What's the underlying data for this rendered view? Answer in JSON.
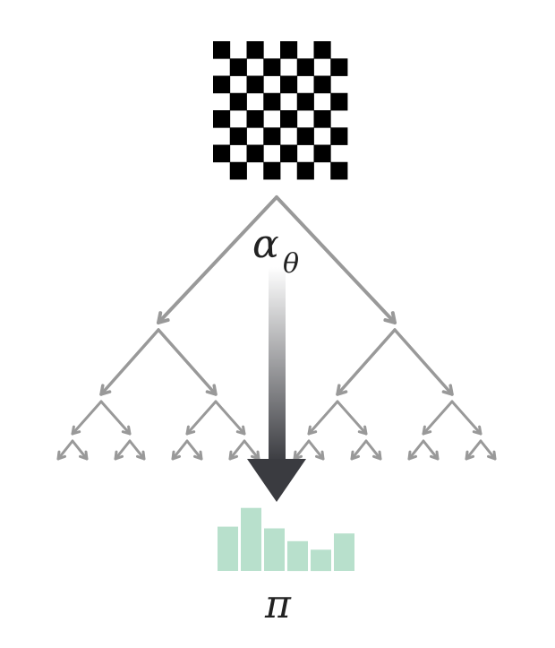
{
  "labels": {
    "alpha": "α",
    "theta": "θ",
    "pi": "π"
  },
  "board": {
    "rows": 8,
    "cols": 8,
    "dark_color": "#000000",
    "light_color": "#ffffff"
  },
  "tree": {
    "depth": 4,
    "branch_color": "#999999"
  },
  "policy": {
    "bar_color": "#b8e0cc",
    "values": [
      0.52,
      0.74,
      0.5,
      0.35,
      0.25,
      0.44
    ]
  },
  "arrow": {
    "gradient_start": "#ffffff",
    "gradient_end": "#3a3b40"
  },
  "icons": [
    "chessboard-icon",
    "search-tree",
    "down-arrow-icon",
    "policy-histogram"
  ]
}
